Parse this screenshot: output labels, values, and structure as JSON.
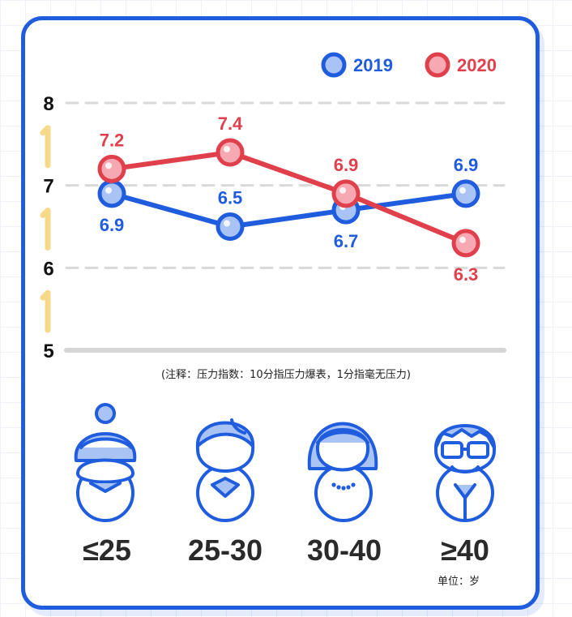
{
  "chart_data": {
    "type": "line",
    "categories": [
      "≤25",
      "25-30",
      "30-40",
      "≥40"
    ],
    "series": [
      {
        "name": "2019",
        "values": [
          6.9,
          6.5,
          6.7,
          6.9
        ],
        "color": "#1f5cde",
        "fill": "#a9c3f5"
      },
      {
        "name": "2020",
        "values": [
          7.2,
          7.4,
          6.9,
          6.3
        ],
        "color": "#e0404b",
        "fill": "#f6a9b3"
      }
    ],
    "ylim": [
      5,
      8
    ],
    "yticks": [
      "5",
      "6",
      "7",
      "8"
    ],
    "grid": true,
    "legend_position": "top-right"
  },
  "note": "(注释：压力指数：10分指压力爆表，1分指毫无压力)",
  "unit_label": "单位：岁",
  "age_groups": [
    {
      "label": "≤25",
      "icon": "young-woman-bun-icon"
    },
    {
      "label": "25-30",
      "icon": "young-man-icon"
    },
    {
      "label": "30-40",
      "icon": "woman-pearl-necklace-icon"
    },
    {
      "label": "≥40",
      "icon": "older-man-glasses-icon"
    }
  ],
  "colors": {
    "accent": "#1f5cde",
    "series2019": "#1f5cde",
    "series2020": "#e0404b",
    "arrow": "#f7d98a"
  }
}
